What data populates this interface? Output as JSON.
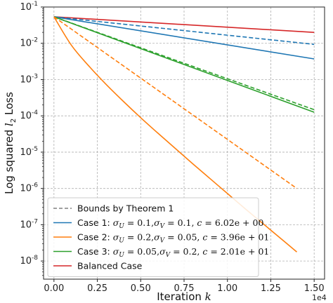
{
  "chart_data": {
    "type": "line",
    "title": "",
    "xlabel": "Iteration k",
    "ylabel": "Log squared l2 Loss",
    "y_scale": "log",
    "xlim": [
      -0.06,
      1.56
    ],
    "ylim_exponent": [
      -8.5,
      -1
    ],
    "x_ticks": [
      0,
      0.25,
      0.5,
      0.75,
      1.0,
      1.25,
      1.5
    ],
    "x_tick_labels": [
      "0.00",
      "0.25",
      "0.50",
      "0.75",
      "1.00",
      "1.25",
      "1.50"
    ],
    "x_multiplier_label": "1e4",
    "y_tick_labels": [
      "10^-1",
      "10^-2",
      "10^-3",
      "10^-4",
      "10^-5",
      "10^-6",
      "10^-7",
      "10^-8"
    ],
    "grid": true,
    "legend_placement": "lower-left",
    "legend": [
      {
        "label": "Bounds by Theorem 1",
        "color": "#808080",
        "dash": true
      },
      {
        "label": "Case 1: σU = 0.1,σV = 0.1, c = 6.02e + 00",
        "color": "#1f77b4",
        "dash": false
      },
      {
        "label": "Case 2: σU = 0.2,σV = 0.05, c = 3.96e + 01",
        "color": "#ff7f0e",
        "dash": false
      },
      {
        "label": "Case 3: σU = 0.05,σV = 0.2, c = 2.01e + 01",
        "color": "#2ca02c",
        "dash": false
      },
      {
        "label": "Balanced Case",
        "color": "#d62728",
        "dash": false
      }
    ],
    "series": [
      {
        "name": "Balanced Case",
        "color": "#d62728",
        "style": "solid",
        "x": [
          0,
          1.5
        ],
        "log10_y": [
          -1.27,
          -1.7
        ]
      },
      {
        "name": "Case 1: σU = 0.1,σV = 0.1, c = 6.02e + 00",
        "color": "#1f77b4",
        "style": "solid",
        "x": [
          0,
          1.5
        ],
        "log10_y": [
          -1.27,
          -2.43
        ]
      },
      {
        "name": "Bounds by Theorem 1",
        "color": "#1f77b4",
        "style": "dashed",
        "x": [
          0,
          1.5
        ],
        "log10_y": [
          -1.27,
          -2.03
        ]
      },
      {
        "name": "Case 3: σU = 0.05,σV = 0.2, c = 2.01e + 01",
        "color": "#2ca02c",
        "style": "solid",
        "x": [
          0,
          1.5
        ],
        "log10_y": [
          -1.27,
          -3.9
        ]
      },
      {
        "name": "Bounds by Theorem 1",
        "color": "#2ca02c",
        "style": "dashed",
        "x": [
          0,
          1.5
        ],
        "log10_y": [
          -1.27,
          -3.83
        ]
      },
      {
        "name": "Bounds by Theorem 1",
        "color": "#ff7f0e",
        "style": "dashed",
        "x": [
          0,
          1.4
        ],
        "log10_y": [
          -1.27,
          -6.0
        ]
      },
      {
        "name": "Case 2: σU = 0.2,σV = 0.05, c = 3.96e + 01",
        "color": "#ff7f0e",
        "style": "solid",
        "x": [
          0,
          0.1,
          0.2,
          0.3,
          0.4,
          0.5,
          0.6,
          0.7,
          0.8,
          0.9,
          1.0,
          1.1,
          1.2,
          1.3,
          1.4
        ],
        "log10_y": [
          -1.27,
          -2.05,
          -2.62,
          -3.13,
          -3.6,
          -4.05,
          -4.48,
          -4.9,
          -5.32,
          -5.73,
          -6.14,
          -6.55,
          -6.95,
          -7.35,
          -7.75
        ]
      }
    ]
  }
}
